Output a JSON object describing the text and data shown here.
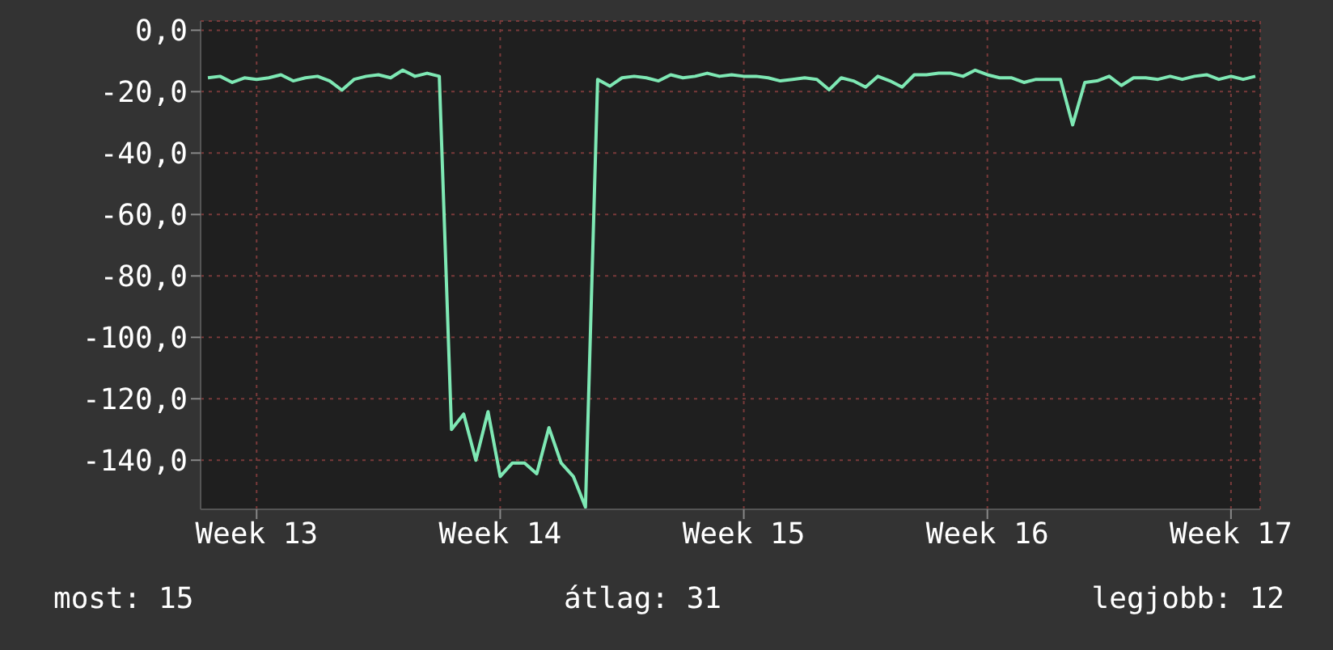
{
  "chart_data": {
    "type": "line",
    "categories": [
      null,
      null,
      null,
      null,
      "Week 13",
      null,
      null,
      null,
      null,
      null,
      null,
      null,
      null,
      null,
      null,
      null,
      null,
      null,
      null,
      null,
      null,
      null,
      null,
      null,
      "Week 14",
      null,
      null,
      null,
      null,
      null,
      null,
      null,
      null,
      null,
      null,
      null,
      null,
      null,
      null,
      null,
      null,
      null,
      null,
      null,
      "Week 15",
      null,
      null,
      null,
      null,
      null,
      null,
      null,
      null,
      null,
      null,
      null,
      null,
      null,
      null,
      null,
      null,
      null,
      null,
      null,
      "Week 16",
      null,
      null,
      null,
      null,
      null,
      null,
      null,
      null,
      null,
      null,
      null,
      null,
      null,
      null,
      null,
      null,
      null,
      null,
      null,
      "Week 17",
      null,
      null
    ],
    "series": [
      {
        "color": "#7ee8b4",
        "values": [
          -15.5,
          -15,
          -17,
          -15.5,
          -16,
          -15.5,
          -14.5,
          -16.5,
          -15.5,
          -15,
          -16.5,
          -19.5,
          -16,
          -15,
          -14.5,
          -15.5,
          -13,
          -15,
          -14,
          -15,
          -130,
          -125,
          -140,
          -124.2,
          -145.3,
          -140.9,
          -140.9,
          -144.4,
          -129.4,
          -140.9,
          -145.3,
          -155.3,
          -16,
          -18.2,
          -15.5,
          -15,
          -15.5,
          -16.5,
          -14.5,
          -15.5,
          -15,
          -14,
          -15,
          -14.5,
          -15,
          -15,
          -15.5,
          -16.5,
          -16,
          -15.5,
          -16,
          -19.4,
          -15.5,
          -16.5,
          -18.5,
          -15,
          -16.5,
          -18.5,
          -14.5,
          -14.5,
          -14,
          -14,
          -15,
          -13,
          -14.5,
          -15.5,
          -15.5,
          -17,
          -16,
          -16,
          -16,
          -30.8,
          -17,
          -16.5,
          -15,
          -18,
          -15.5,
          -15.5,
          -16,
          -15,
          -16,
          -15,
          -14.5,
          -16,
          -15,
          -16,
          -15
        ]
      }
    ],
    "ylim": [
      -156,
      3
    ],
    "yticks": [
      {
        "value": 0,
        "label": "0,0"
      },
      {
        "value": -20,
        "label": "-20,0"
      },
      {
        "value": -40,
        "label": "-40,0"
      },
      {
        "value": -60,
        "label": "-60,0"
      },
      {
        "value": -80,
        "label": "-80,0"
      },
      {
        "value": -100,
        "label": "-100,0"
      },
      {
        "value": -120,
        "label": "-120,0"
      },
      {
        "value": -140,
        "label": "-140,0"
      }
    ],
    "grid": true,
    "annotations": [
      "most: 15",
      "átlag: 31",
      "legjobb: 12"
    ]
  }
}
